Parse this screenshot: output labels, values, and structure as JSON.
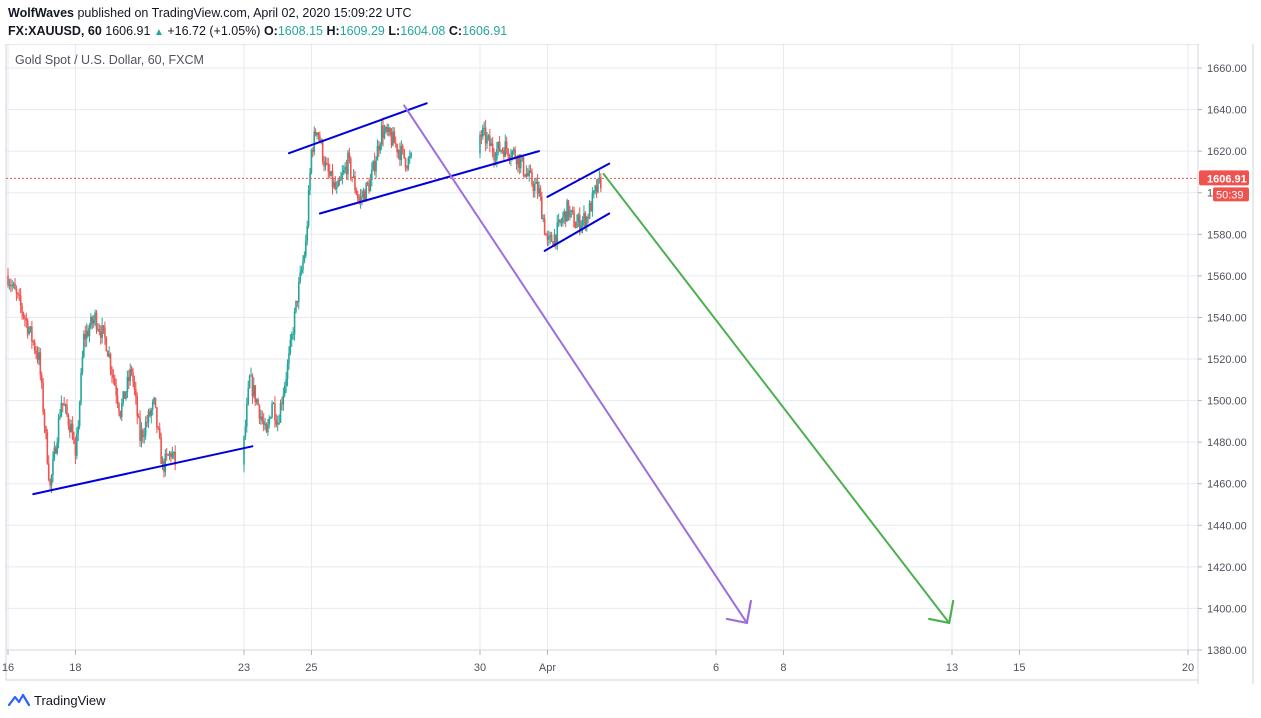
{
  "header": {
    "author": "WolfWaves",
    "published_text": "published on TradingView.com, April 02, 2020 15:09:22 UTC",
    "symbol": "FX:XAUUSD, 60",
    "last": "1606.91",
    "change": "+16.72 (+1.05%)",
    "o_label": "O:",
    "o": "1608.15",
    "h_label": "H:",
    "h": "1609.29",
    "l_label": "L:",
    "l": "1604.08",
    "c_label": "C:",
    "c": "1606.91"
  },
  "footer": {
    "brand": "TradingView"
  },
  "colors": {
    "up": "#26a69a",
    "down": "#ef5350",
    "trendline": "#0000dd",
    "purple_arrow": "#9c6fdc",
    "green_arrow": "#4caf50",
    "price_line": "#ef5350",
    "grid": "#e6eaef"
  },
  "chart_data": {
    "type": "candlestick",
    "title": "Gold Spot / U.S. Dollar, 60, FXCM",
    "xlabel": "",
    "ylabel": "",
    "ylim": [
      1376,
      1668
    ],
    "y_ticks": [
      1380,
      1400,
      1420,
      1440,
      1460,
      1480,
      1500,
      1520,
      1540,
      1560,
      1580,
      1600,
      1620,
      1640,
      1660
    ],
    "y_tick_labels": [
      "1380.00",
      "1400.00",
      "1420.00",
      "1440.00",
      "1460.00",
      "1480.00",
      "1500.00",
      "1520.00",
      "1540.00",
      "1560.00",
      "1580.00",
      "1600.00",
      "1620.00",
      "1640.00",
      "1660.00"
    ],
    "x_tick_labels": [
      "16",
      "18",
      "23",
      "25",
      "30",
      "Apr",
      "6",
      "8",
      "13",
      "15",
      "20"
    ],
    "x_ticks": [
      "2020-03-16",
      "2020-03-18",
      "2020-03-23",
      "2020-03-25",
      "2020-03-30",
      "2020-04-01",
      "2020-04-06",
      "2020-04-08",
      "2020-04-13",
      "2020-04-15",
      "2020-04-20"
    ],
    "xlim": [
      "2020-03-16",
      "2020-04-20"
    ],
    "grid": true,
    "current_price": 1606.91,
    "current_price_label": "1606.91",
    "countdown_label": "50:39",
    "price_path": [
      [
        "2020-03-16 00:00",
        1560
      ],
      [
        "2020-03-16 12:00",
        1540
      ],
      [
        "2020-03-16 22:00",
        1520
      ],
      [
        "2020-03-17 06:00",
        1458
      ],
      [
        "2020-03-17 14:00",
        1500
      ],
      [
        "2020-03-17 22:00",
        1485
      ],
      [
        "2020-03-18 00:00",
        1470
      ],
      [
        "2020-03-18 06:00",
        1530
      ],
      [
        "2020-03-18 14:00",
        1540
      ],
      [
        "2020-03-18 22:00",
        1528
      ],
      [
        "2020-03-19 08:00",
        1495
      ],
      [
        "2020-03-19 16:00",
        1515
      ],
      [
        "2020-03-19 22:00",
        1482
      ],
      [
        "2020-03-20 08:00",
        1498
      ],
      [
        "2020-03-20 14:00",
        1468
      ],
      [
        "2020-03-20 20:00",
        1475
      ],
      [
        "2020-03-20 23:00",
        1470
      ],
      [
        "2020-03-23 00:00",
        1480
      ],
      [
        "2020-03-23 04:00",
        1510
      ],
      [
        "2020-03-23 10:00",
        1498
      ],
      [
        "2020-03-23 16:00",
        1482
      ],
      [
        "2020-03-23 20:00",
        1500
      ],
      [
        "2020-03-24 00:00",
        1490
      ],
      [
        "2020-03-24 08:00",
        1520
      ],
      [
        "2020-03-24 14:00",
        1550
      ],
      [
        "2020-03-24 20:00",
        1575
      ],
      [
        "2020-03-25 00:00",
        1620
      ],
      [
        "2020-03-25 04:00",
        1632
      ],
      [
        "2020-03-25 10:00",
        1612
      ],
      [
        "2020-03-25 18:00",
        1600
      ],
      [
        "2020-03-26 02:00",
        1615
      ],
      [
        "2020-03-26 10:00",
        1596
      ],
      [
        "2020-03-26 18:00",
        1605
      ],
      [
        "2020-03-27 02:00",
        1630
      ],
      [
        "2020-03-27 10:00",
        1625
      ],
      [
        "2020-03-27 20:00",
        1615
      ],
      [
        "2020-03-30 02:00",
        1628
      ],
      [
        "2020-03-30 10:00",
        1620
      ],
      [
        "2020-03-30 18:00",
        1622
      ],
      [
        "2020-03-31 02:00",
        1618
      ],
      [
        "2020-03-31 10:00",
        1608
      ],
      [
        "2020-03-31 18:00",
        1600
      ],
      [
        "2020-04-01 00:00",
        1575
      ],
      [
        "2020-04-01 06:00",
        1580
      ],
      [
        "2020-04-01 14:00",
        1592
      ],
      [
        "2020-04-01 20:00",
        1585
      ],
      [
        "2020-04-02 04:00",
        1588
      ],
      [
        "2020-04-02 10:00",
        1600
      ],
      [
        "2020-04-02 15:00",
        1606.91
      ]
    ],
    "annotations": [
      {
        "type": "trendline",
        "name": "support-line-march",
        "color": "trendline",
        "from": [
          "2020-03-16 18:00",
          1455
        ],
        "to": [
          "2020-03-23 06:00",
          1478
        ]
      },
      {
        "type": "trendline",
        "name": "channel-upper-1",
        "color": "trendline",
        "from": [
          "2020-03-24 08:00",
          1619
        ],
        "to": [
          "2020-03-28 10:00",
          1643
        ]
      },
      {
        "type": "trendline",
        "name": "channel-lower-1",
        "color": "trendline",
        "from": [
          "2020-03-25 06:00",
          1590
        ],
        "to": [
          "2020-03-31 18:00",
          1620
        ]
      },
      {
        "type": "trendline",
        "name": "channel-upper-2",
        "color": "trendline",
        "from": [
          "2020-04-01 00:00",
          1598
        ],
        "to": [
          "2020-04-02 20:00",
          1614
        ]
      },
      {
        "type": "trendline",
        "name": "channel-lower-2",
        "color": "trendline",
        "from": [
          "2020-03-31 22:00",
          1572
        ],
        "to": [
          "2020-04-02 20:00",
          1590
        ]
      },
      {
        "type": "arrow",
        "name": "purple-forecast-arrow",
        "color": "purple_arrow",
        "from": [
          "2020-03-27 18:00",
          1642
        ],
        "to": [
          "2020-04-06 22:00",
          1393
        ]
      },
      {
        "type": "arrow",
        "name": "green-forecast-arrow",
        "color": "green_arrow",
        "from": [
          "2020-04-02 16:00",
          1609
        ],
        "to": [
          "2020-04-12 22:00",
          1393
        ]
      }
    ]
  }
}
